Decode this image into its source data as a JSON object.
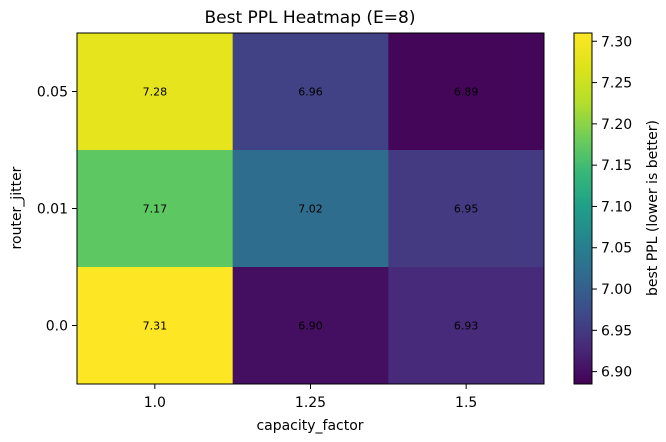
{
  "chart_data": {
    "type": "heatmap",
    "title": "Best PPL Heatmap (E=8)",
    "xlabel": "capacity_factor",
    "ylabel": "router_jitter",
    "x_categories": [
      "1.0",
      "1.25",
      "1.5"
    ],
    "y_categories": [
      "0.05",
      "0.01",
      "0.0"
    ],
    "values": [
      [
        7.28,
        6.96,
        6.89
      ],
      [
        7.17,
        7.02,
        6.95
      ],
      [
        7.31,
        6.9,
        6.93
      ]
    ],
    "value_labels": [
      [
        "7.28",
        "6.96",
        "6.89"
      ],
      [
        "7.17",
        "7.02",
        "6.95"
      ],
      [
        "7.31",
        "6.90",
        "6.93"
      ]
    ],
    "colormap": "viridis",
    "colorbar": {
      "label": "best PPL (lower is better)",
      "range": [
        6.885,
        7.31
      ],
      "ticks": [
        "6.90",
        "6.95",
        "7.00",
        "7.05",
        "7.10",
        "7.15",
        "7.20",
        "7.25",
        "7.30"
      ]
    }
  }
}
